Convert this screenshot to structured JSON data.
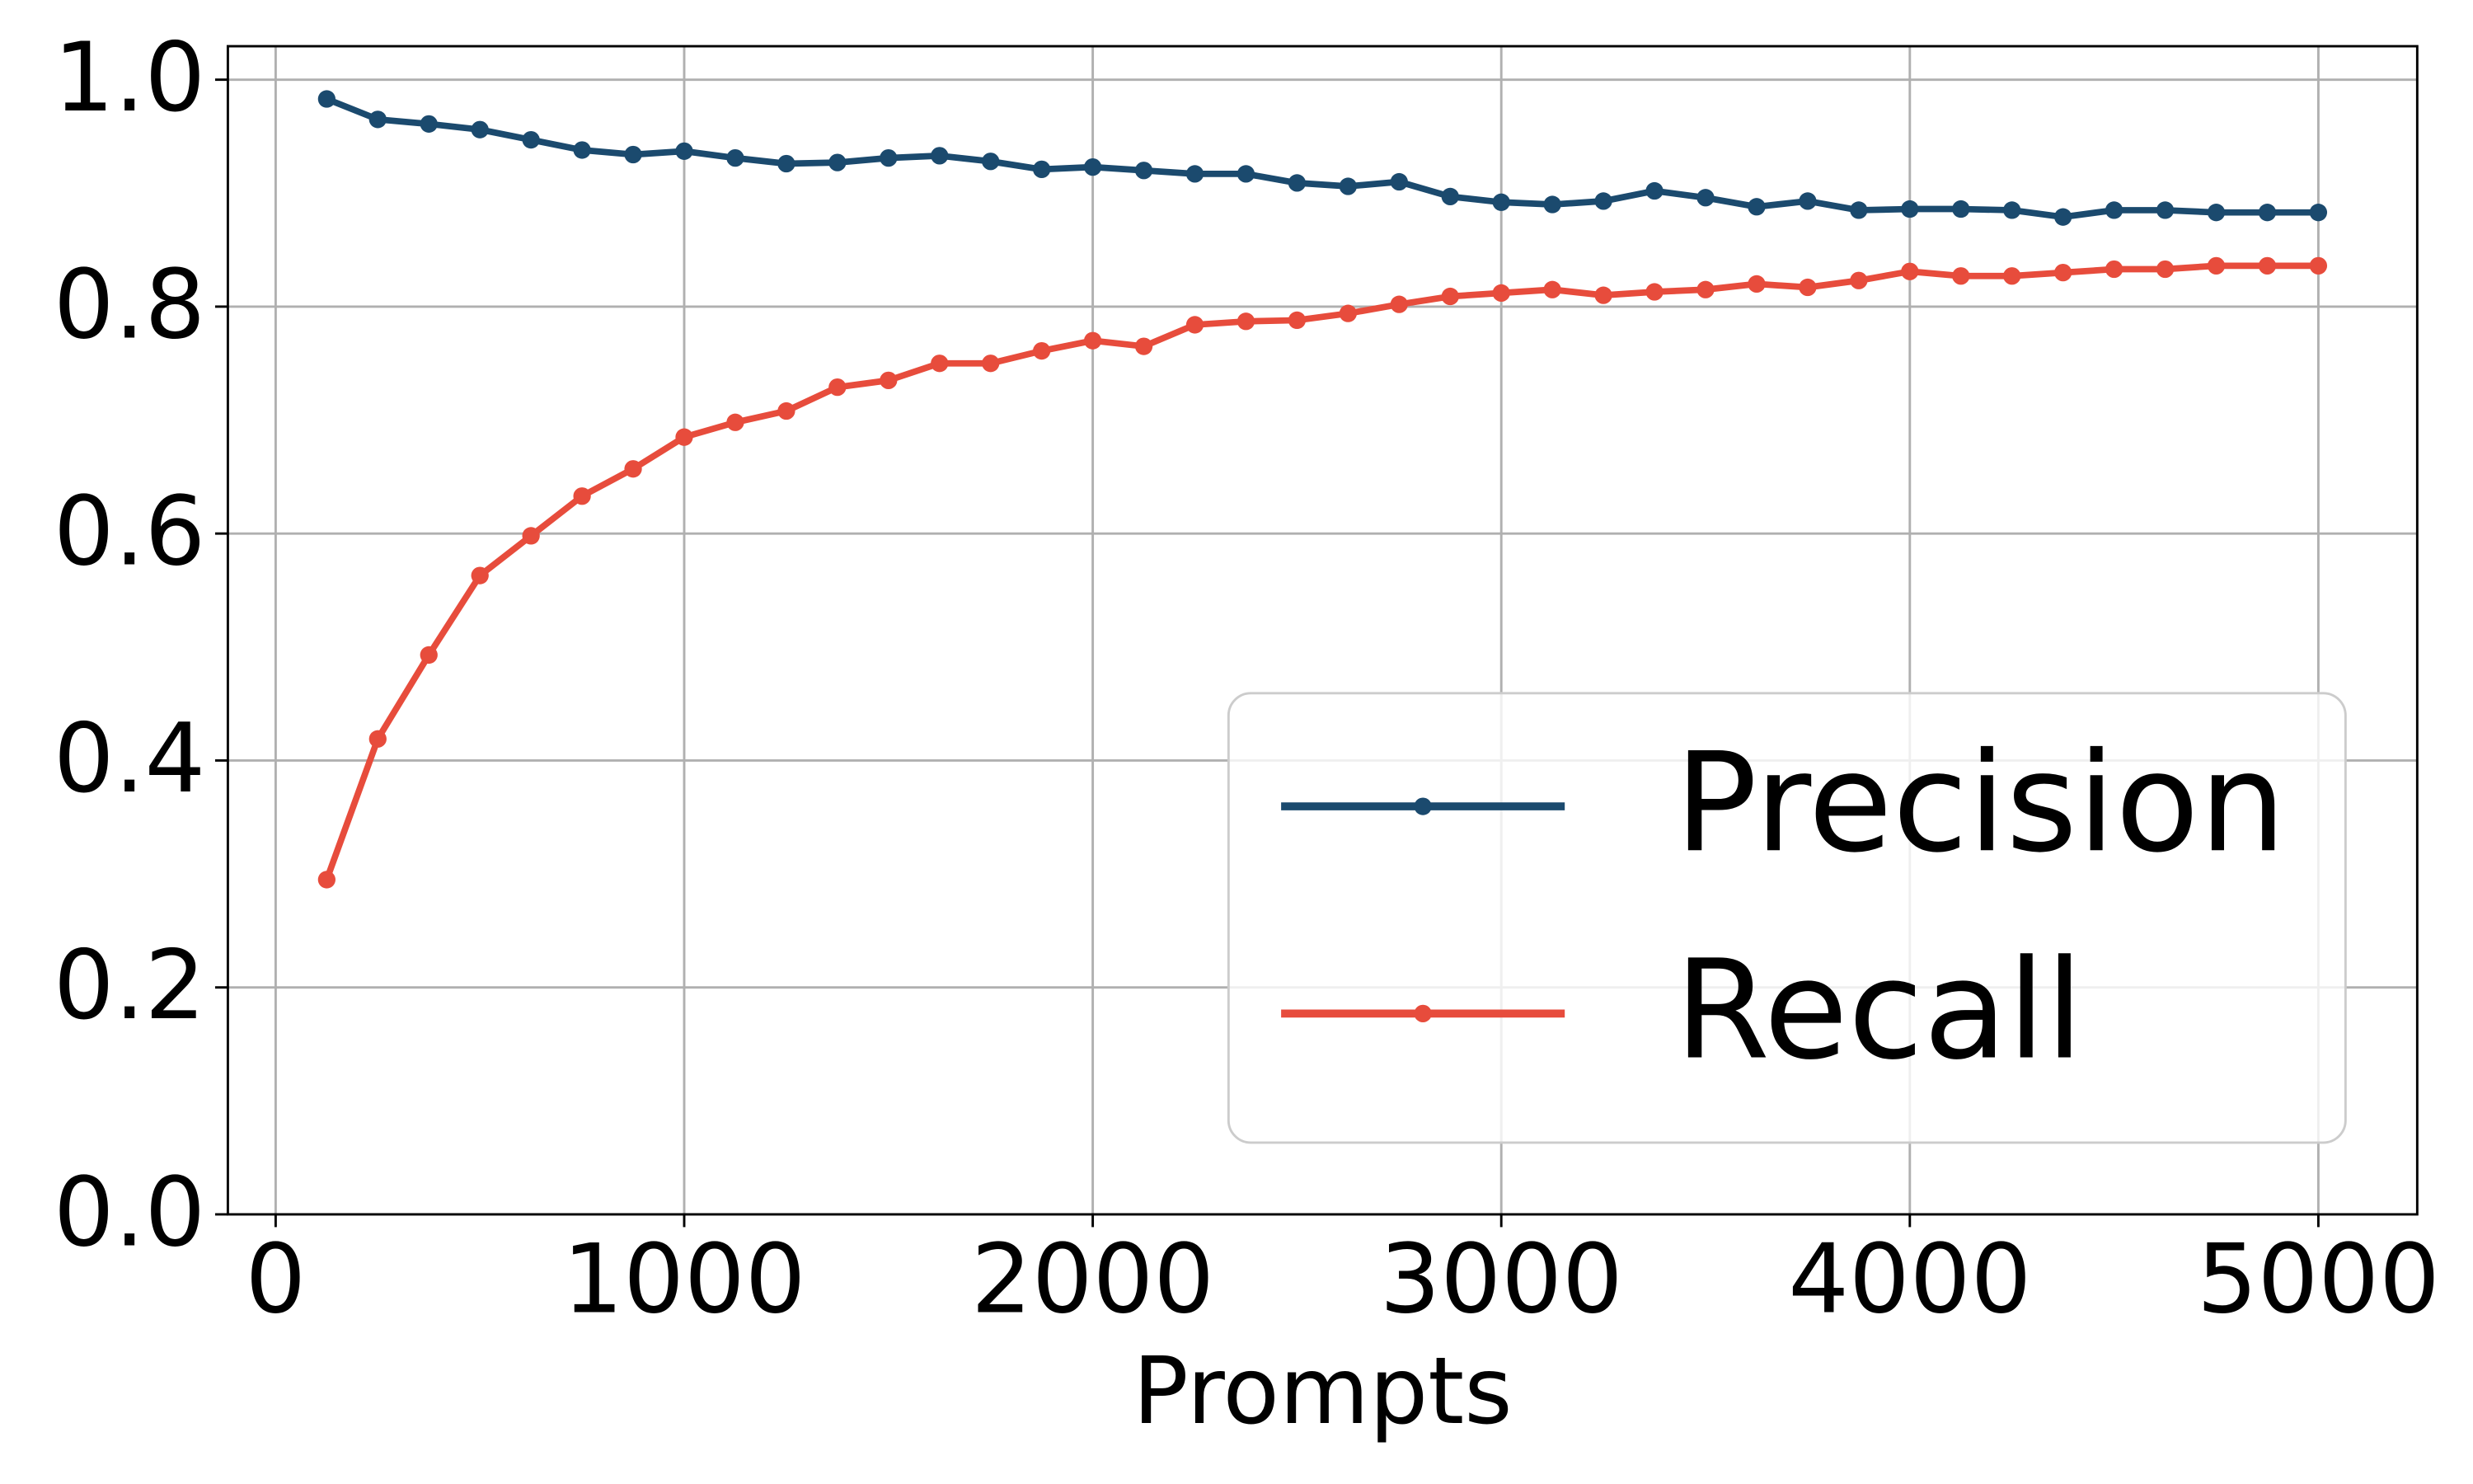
{
  "chart_data": {
    "type": "line",
    "x_label": "Prompts",
    "x": [
      125,
      250,
      375,
      500,
      625,
      750,
      875,
      1000,
      1125,
      1250,
      1375,
      1500,
      1625,
      1750,
      1875,
      2000,
      2125,
      2250,
      2375,
      2500,
      2625,
      2750,
      2875,
      3000,
      3125,
      3250,
      3375,
      3500,
      3625,
      3750,
      3875,
      4000,
      4125,
      4250,
      4375,
      4500,
      4625,
      4750,
      4875,
      5000
    ],
    "series": [
      {
        "name": "Precision",
        "color": "#1b4a6e",
        "values": [
          0.983,
          0.965,
          0.961,
          0.956,
          0.947,
          0.938,
          0.934,
          0.937,
          0.931,
          0.926,
          0.927,
          0.931,
          0.933,
          0.928,
          0.921,
          0.923,
          0.92,
          0.917,
          0.917,
          0.909,
          0.906,
          0.91,
          0.897,
          0.892,
          0.89,
          0.893,
          0.902,
          0.896,
          0.888,
          0.893,
          0.885,
          0.886,
          0.886,
          0.885,
          0.879,
          0.885,
          0.885,
          0.883,
          0.883,
          0.883
        ]
      },
      {
        "name": "Recall",
        "color": "#e74c3c",
        "values": [
          0.295,
          0.419,
          0.493,
          0.563,
          0.598,
          0.633,
          0.657,
          0.685,
          0.698,
          0.708,
          0.729,
          0.735,
          0.75,
          0.75,
          0.761,
          0.77,
          0.765,
          0.784,
          0.787,
          0.788,
          0.794,
          0.802,
          0.809,
          0.812,
          0.815,
          0.81,
          0.813,
          0.815,
          0.82,
          0.817,
          0.823,
          0.831,
          0.827,
          0.827,
          0.83,
          0.833,
          0.833,
          0.836,
          0.836,
          0.836
        ]
      }
    ],
    "xlim": [
      -117,
      5242
    ],
    "xticks": [
      0,
      1000,
      2000,
      3000,
      4000,
      5000
    ],
    "ylim": [
      0,
      1.0295
    ],
    "yticks": [
      {
        "value": 0,
        "label": "0.0"
      },
      0.2,
      0.4,
      0.6,
      0.8,
      {
        "value": 1,
        "label": "1.0"
      }
    ],
    "grid": true,
    "legend": "lower right"
  }
}
